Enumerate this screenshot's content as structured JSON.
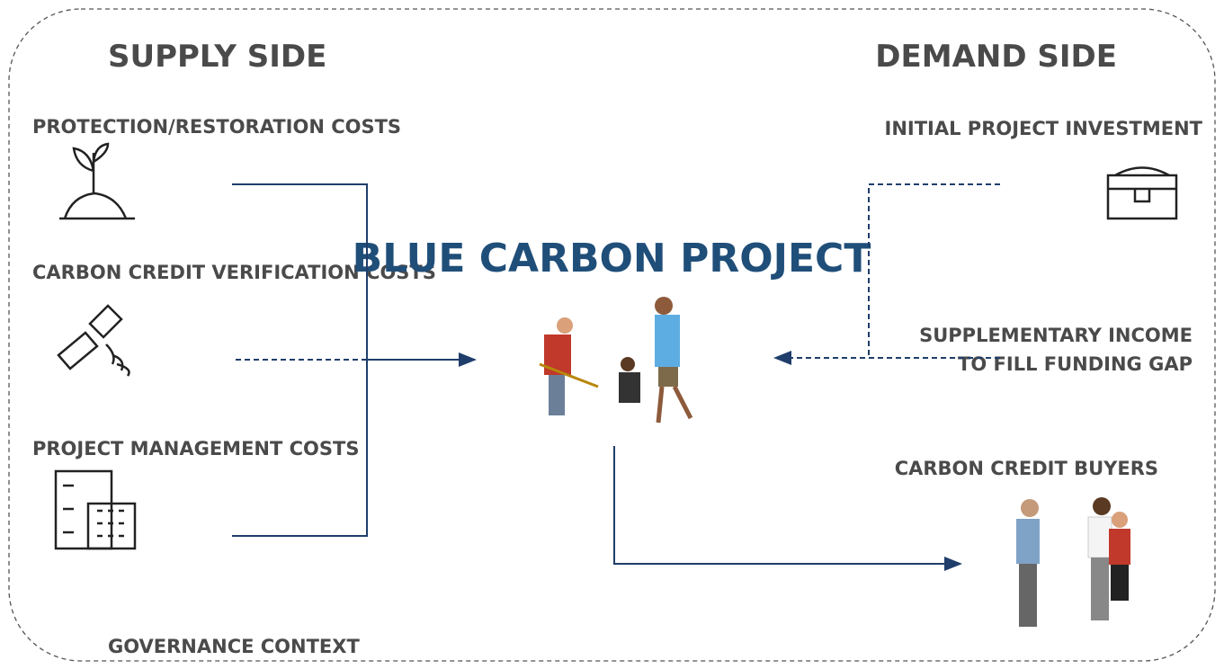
{
  "supply_side": {
    "title": "SUPPLY SIDE",
    "items": [
      "PROTECTION/RESTORATION COSTS",
      "CARBON CREDIT VERIFICATION COSTS",
      "PROJECT MANAGEMENT COSTS"
    ]
  },
  "demand_side": {
    "title": "DEMAND SIDE",
    "items": [
      "INITIAL PROJECT INVESTMENT",
      "SUPPLEMENTARY INCOME",
      "TO FILL FUNDING GAP",
      "CARBON CREDIT BUYERS"
    ]
  },
  "center": "BLUE CARBON PROJECT",
  "footer": "GOVERNANCE CONTEXT"
}
